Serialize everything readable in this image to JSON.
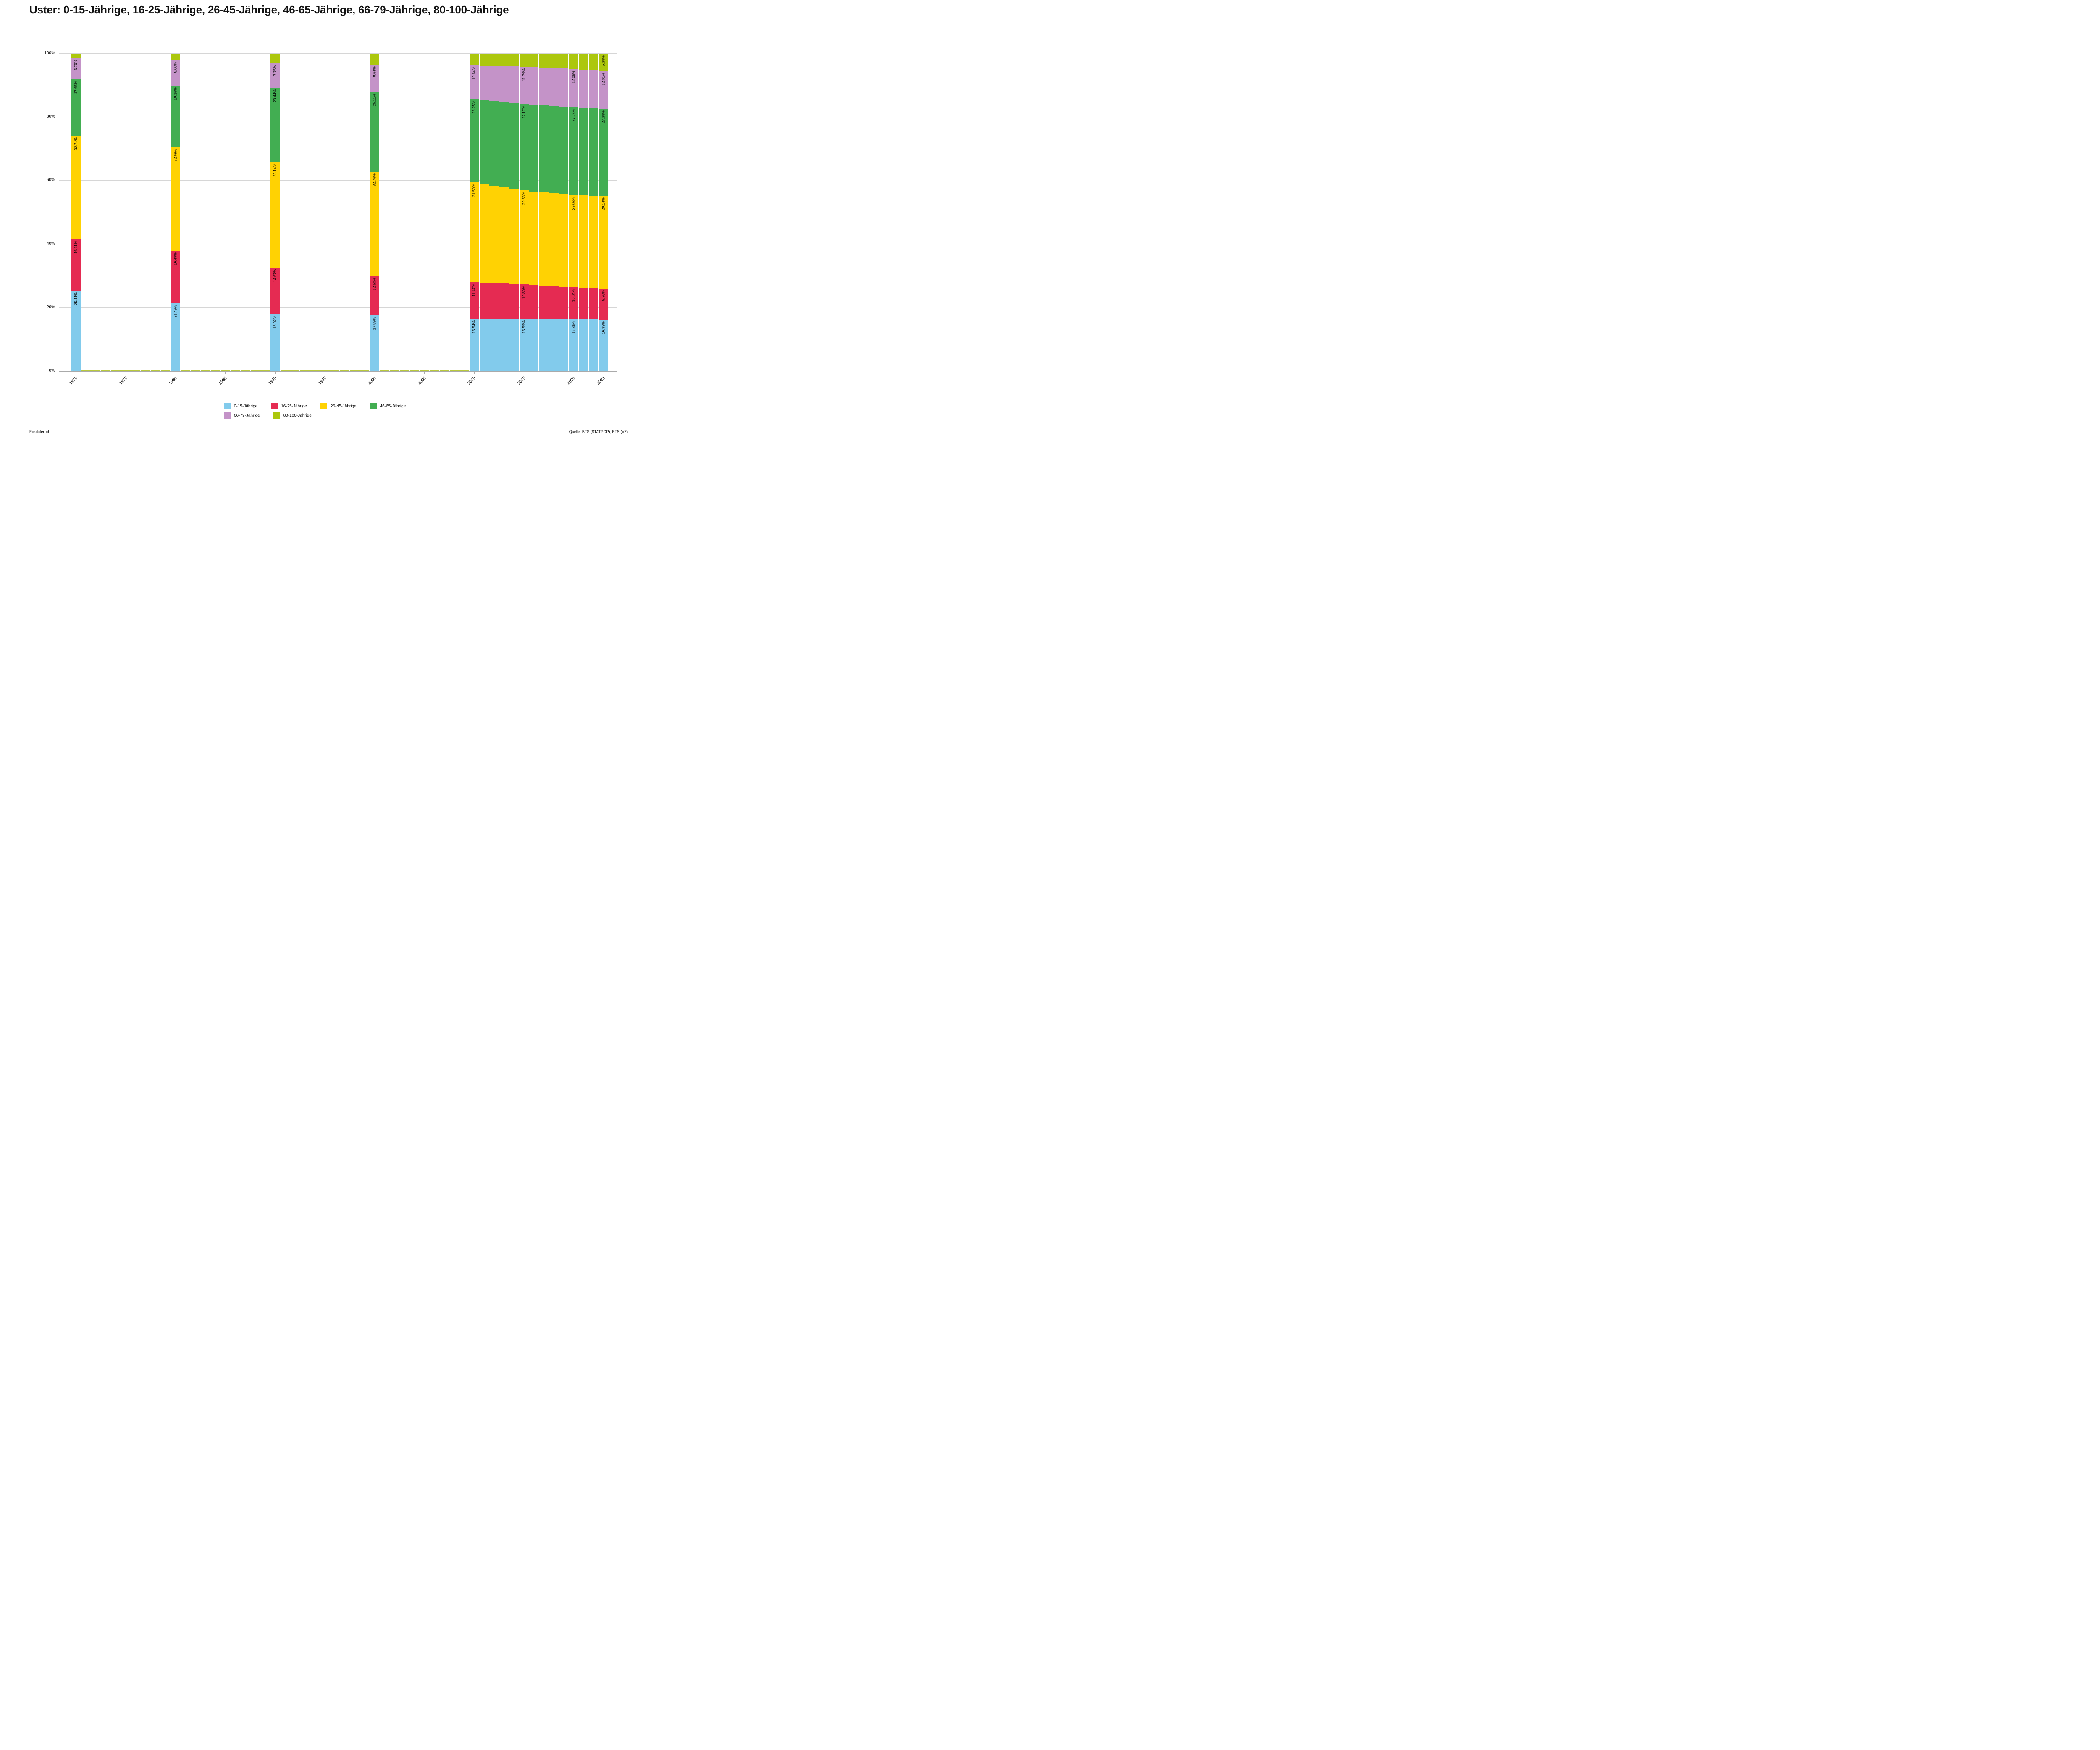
{
  "title": "Uster: 0-15-Jährige, 16-25-Jährige, 26-45-Jährige, 46-65-Jährige, 66-79-Jährige, 80-100-Jährige",
  "footer": {
    "left": "Eckdaten.ch",
    "right": "Quelle: BFS (STATPOP), BFS (VZ)"
  },
  "y_axis": {
    "ticks": [
      {
        "value": 0,
        "label": "0%"
      },
      {
        "value": 20,
        "label": "20%"
      },
      {
        "value": 40,
        "label": "40%"
      },
      {
        "value": 60,
        "label": "60%"
      },
      {
        "value": 80,
        "label": "80%"
      },
      {
        "value": 100,
        "label": "100%"
      }
    ]
  },
  "x_axis": {
    "ticks": [
      {
        "year": 1970,
        "label": "1970"
      },
      {
        "year": 1975,
        "label": "1975"
      },
      {
        "year": 1980,
        "label": "1980"
      },
      {
        "year": 1985,
        "label": "1985"
      },
      {
        "year": 1990,
        "label": "1990"
      },
      {
        "year": 1995,
        "label": "1995"
      },
      {
        "year": 2000,
        "label": "2000"
      },
      {
        "year": 2005,
        "label": "2005"
      },
      {
        "year": 2010,
        "label": "2010"
      },
      {
        "year": 2015,
        "label": "2015"
      },
      {
        "year": 2020,
        "label": "2020"
      },
      {
        "year": 2023,
        "label": "2023"
      }
    ]
  },
  "chart_data": {
    "type": "bar",
    "stacked": true,
    "unit": "percent",
    "ylim": [
      0,
      100
    ],
    "grid": true,
    "legend_position": "bottom",
    "series": [
      {
        "name": "0-15-Jährige",
        "color": "#82CBEC"
      },
      {
        "name": "16-25-Jährige",
        "color": "#E52B52"
      },
      {
        "name": "26-45-Jährige",
        "color": "#FFD203"
      },
      {
        "name": "46-65-Jährige",
        "color": "#42AE52"
      },
      {
        "name": "66-79-Jährige",
        "color": "#C493C8"
      },
      {
        "name": "80-100-Jährige",
        "color": "#ACC70D"
      }
    ],
    "baseline_sliver_color": "#b9ca3c",
    "bars": [
      {
        "year": 1970,
        "values": [
          25.41,
          16.11,
          32.71,
          17.65,
          6.79,
          1.33
        ],
        "labels": [
          "25.41%",
          "16.11%",
          "32.71%",
          "17.65%",
          "6.79%",
          null
        ]
      },
      {
        "year": 1980,
        "values": [
          21.49,
          16.49,
          32.69,
          19.26,
          8.0,
          2.07
        ],
        "labels": [
          "21.49%",
          "16.49%",
          "32.69%",
          "19.26%",
          "8.00%",
          null
        ]
      },
      {
        "year": 1990,
        "values": [
          18.02,
          14.67,
          33.14,
          23.44,
          7.75,
          2.98
        ],
        "labels": [
          "18.02%",
          "14.67%",
          "33.14%",
          "23.44%",
          "7.75%",
          null
        ]
      },
      {
        "year": 2000,
        "values": [
          17.59,
          12.5,
          32.76,
          25.11,
          8.64,
          3.4
        ],
        "labels": [
          "17.59%",
          "12.50%",
          "32.76%",
          "25.11%",
          "8.64%",
          null
        ]
      },
      {
        "year": 2010,
        "values": [
          16.54,
          11.47,
          31.5,
          26.25,
          10.64,
          3.6
        ],
        "labels": [
          "16.54%",
          "11.47%",
          "31.50%",
          "26.25%",
          "10.64%",
          null
        ]
      },
      {
        "year": 2011,
        "values": [
          16.54,
          11.35,
          31.1,
          26.45,
          10.86,
          3.7
        ],
        "estimated": true
      },
      {
        "year": 2012,
        "values": [
          16.55,
          11.24,
          30.71,
          26.63,
          11.09,
          3.78
        ],
        "estimated": true
      },
      {
        "year": 2013,
        "values": [
          16.55,
          11.12,
          30.31,
          26.81,
          11.33,
          3.88
        ],
        "estimated": true
      },
      {
        "year": 2014,
        "values": [
          16.55,
          11.0,
          29.92,
          26.99,
          11.56,
          3.98
        ],
        "estimated": true
      },
      {
        "year": 2015,
        "values": [
          16.55,
          10.89,
          29.53,
          27.17,
          11.79,
          4.07
        ],
        "labels": [
          "16.55%",
          "10.89%",
          "29.53%",
          "27.17%",
          "11.79%",
          null
        ]
      },
      {
        "year": 2016,
        "values": [
          16.52,
          10.72,
          29.43,
          27.28,
          11.84,
          4.21
        ],
        "estimated": true
      },
      {
        "year": 2017,
        "values": [
          16.48,
          10.55,
          29.33,
          27.4,
          11.9,
          4.34
        ],
        "estimated": true
      },
      {
        "year": 2018,
        "values": [
          16.44,
          10.38,
          29.23,
          27.51,
          11.95,
          4.49
        ],
        "estimated": true
      },
      {
        "year": 2019,
        "values": [
          16.4,
          10.21,
          29.13,
          27.63,
          12.01,
          4.62
        ],
        "estimated": true
      },
      {
        "year": 2020,
        "values": [
          16.36,
          10.04,
          29.03,
          27.74,
          12.06,
          4.77
        ],
        "labels": [
          "16.36%",
          "10.04%",
          "29.03%",
          "27.74%",
          "12.06%",
          null
        ]
      },
      {
        "year": 2021,
        "values": [
          16.35,
          9.95,
          29.07,
          27.62,
          12.04,
          4.97
        ],
        "estimated": true
      },
      {
        "year": 2022,
        "values": [
          16.34,
          9.85,
          29.11,
          27.5,
          12.02,
          5.18
        ],
        "estimated": true
      },
      {
        "year": 2023,
        "values": [
          16.33,
          9.76,
          29.14,
          27.38,
          12.01,
          5.38
        ],
        "labels": [
          "16.33%",
          "9.76%",
          "29.14%",
          "27.38%",
          "12.01%",
          "5.38%"
        ]
      }
    ]
  }
}
